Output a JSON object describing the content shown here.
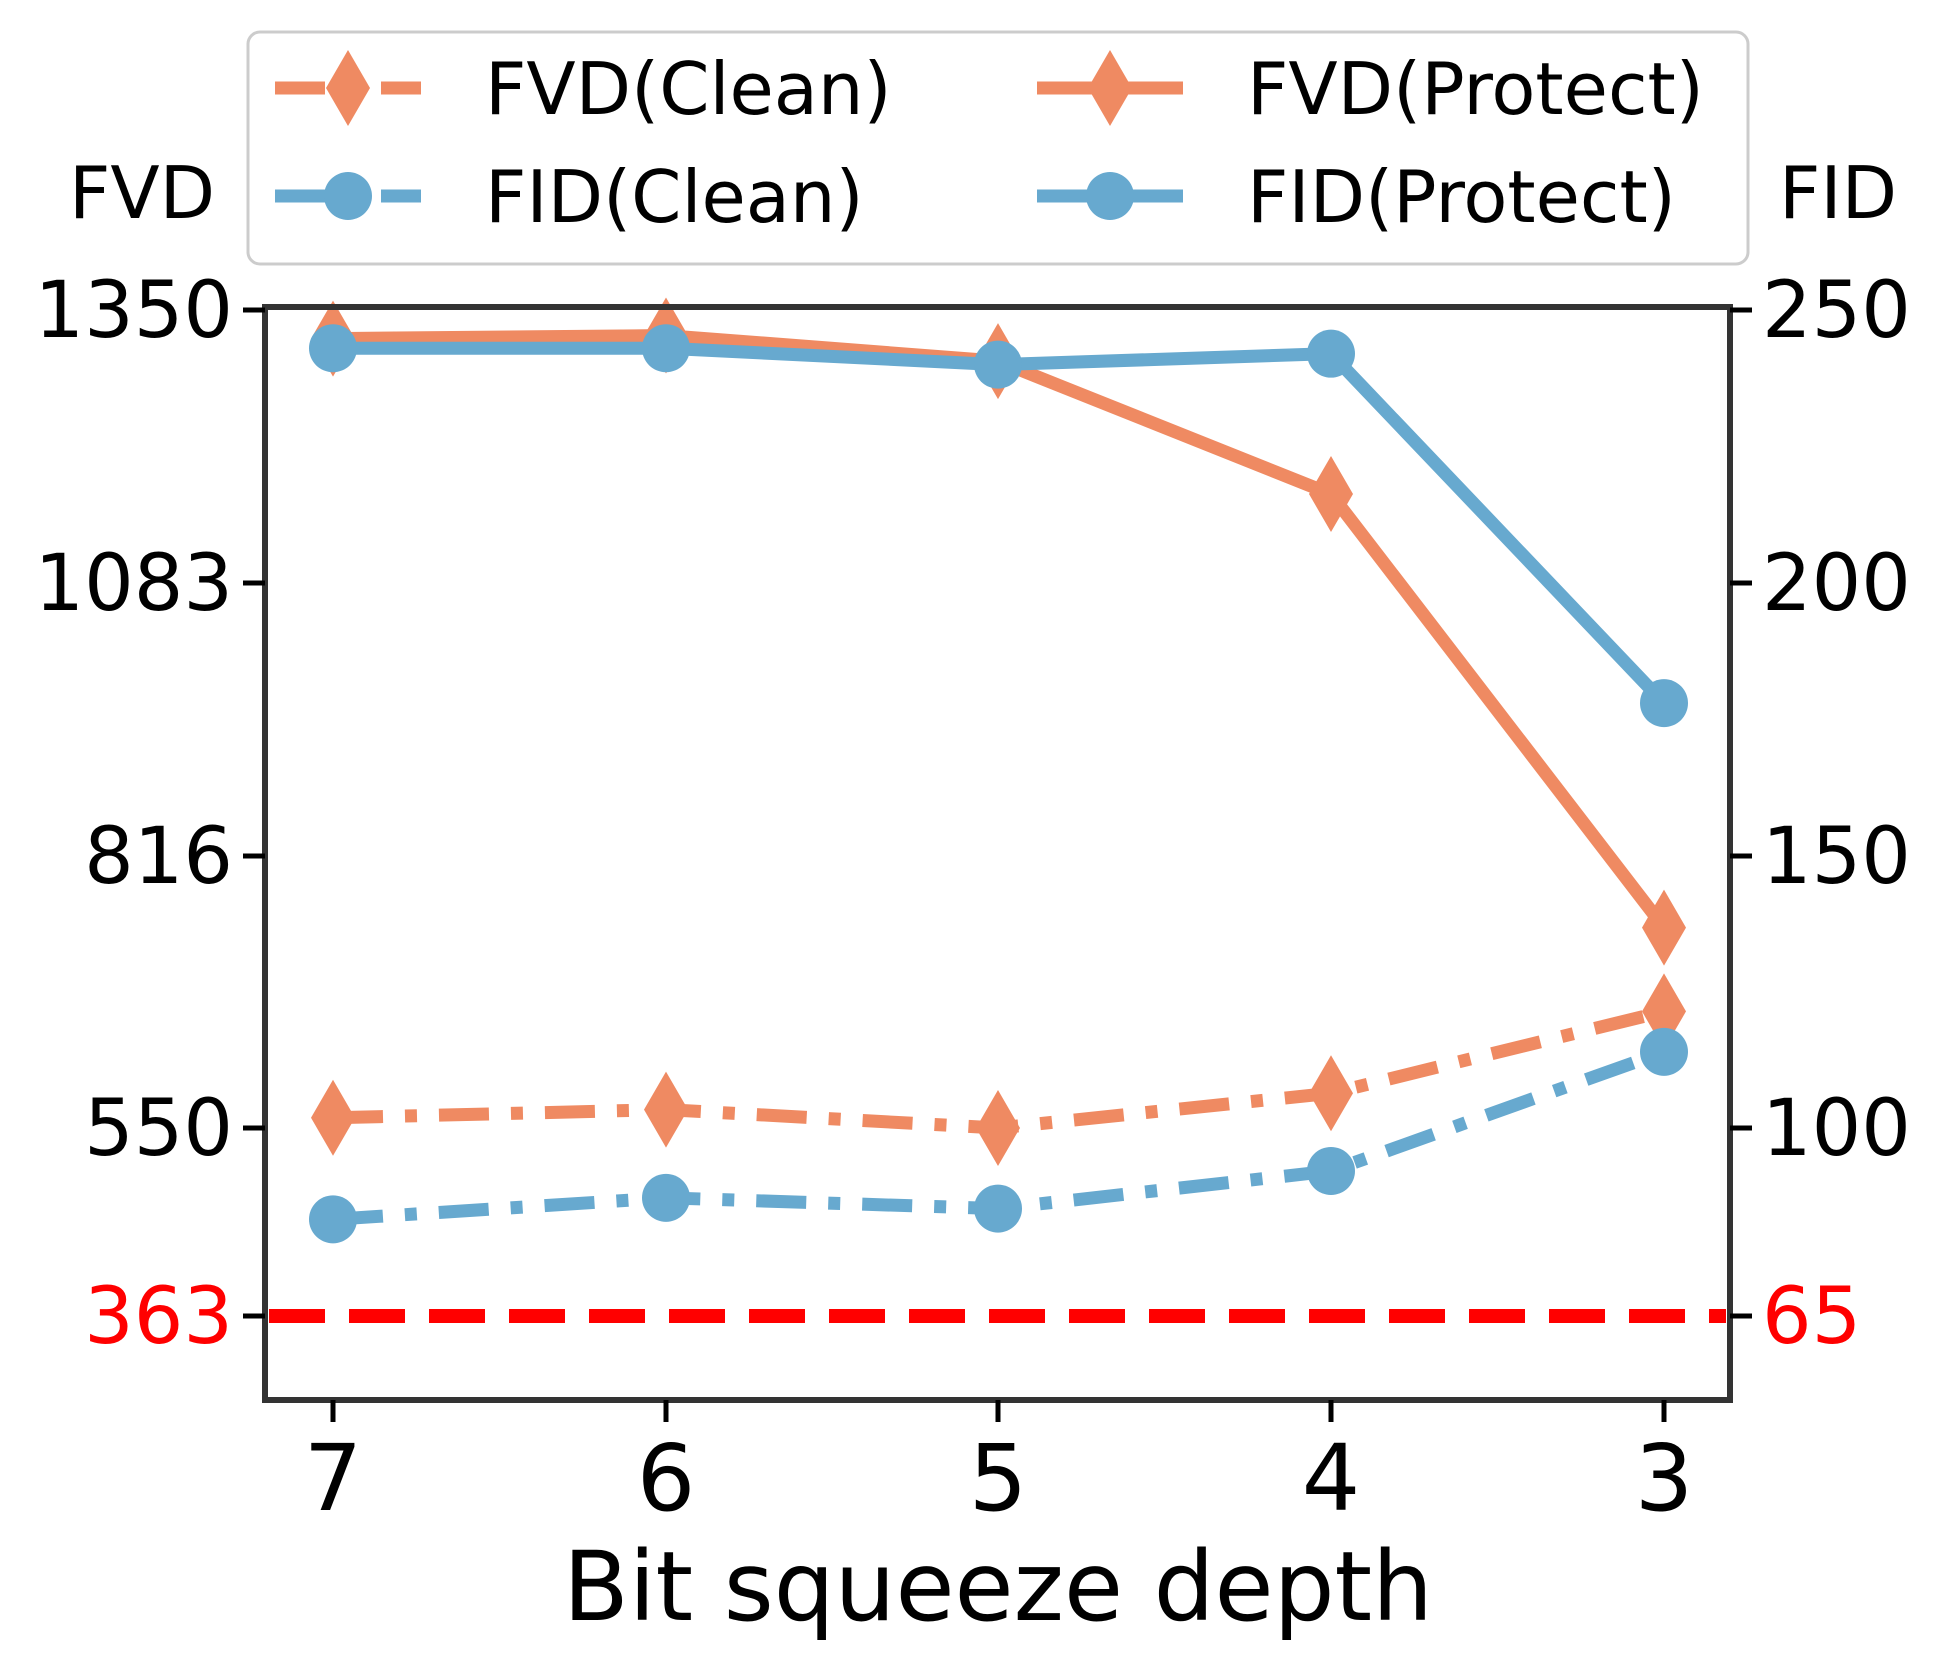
{
  "chart_data": {
    "type": "line",
    "xlabel": "Bit squeeze depth",
    "categories": [
      "7",
      "6",
      "5",
      "4",
      "3"
    ],
    "left_axis": {
      "label": "FVD",
      "ylim": [
        288,
        1350
      ],
      "ticks": [
        550,
        816,
        1083,
        1350
      ],
      "tick_labels": [
        "550",
        "816",
        "1083",
        "1350"
      ]
    },
    "right_axis": {
      "label": "FID",
      "ylim": [
        50,
        250
      ],
      "ticks": [
        100,
        150,
        200,
        250
      ],
      "tick_labels": [
        "100",
        "150",
        "200",
        "250"
      ]
    },
    "reference": {
      "left_value": 363,
      "right_value": 65,
      "left_label": "363",
      "right_label": "65",
      "color": "#ff0000"
    },
    "series": [
      {
        "name": "FVD(Clean)",
        "axis": "left",
        "style": "dashdot",
        "marker": "diamond",
        "color": "#ef8a62",
        "values": [
          560,
          568,
          550,
          584,
          664
        ]
      },
      {
        "name": "FID(Clean)",
        "axis": "left_fid",
        "style": "dashdot",
        "marker": "circle",
        "color": "#67a9cf",
        "values": [
          83,
          87,
          85,
          92,
          114
        ]
      },
      {
        "name": "FVD(Protect)",
        "axis": "left",
        "style": "solid",
        "marker": "diamond",
        "color": "#ef8a62",
        "values": [
          1322,
          1325,
          1300,
          1170,
          746
        ]
      },
      {
        "name": "FID(Protect)",
        "axis": "right",
        "style": "solid",
        "marker": "circle",
        "color": "#67a9cf",
        "values": [
          243,
          243,
          240,
          242,
          178
        ]
      }
    ],
    "legend": {
      "placement": "top",
      "entries": [
        "FVD(Clean)",
        "FVD(Protect)",
        "FID(Clean)",
        "FID(Protect)"
      ]
    },
    "grid": false
  }
}
